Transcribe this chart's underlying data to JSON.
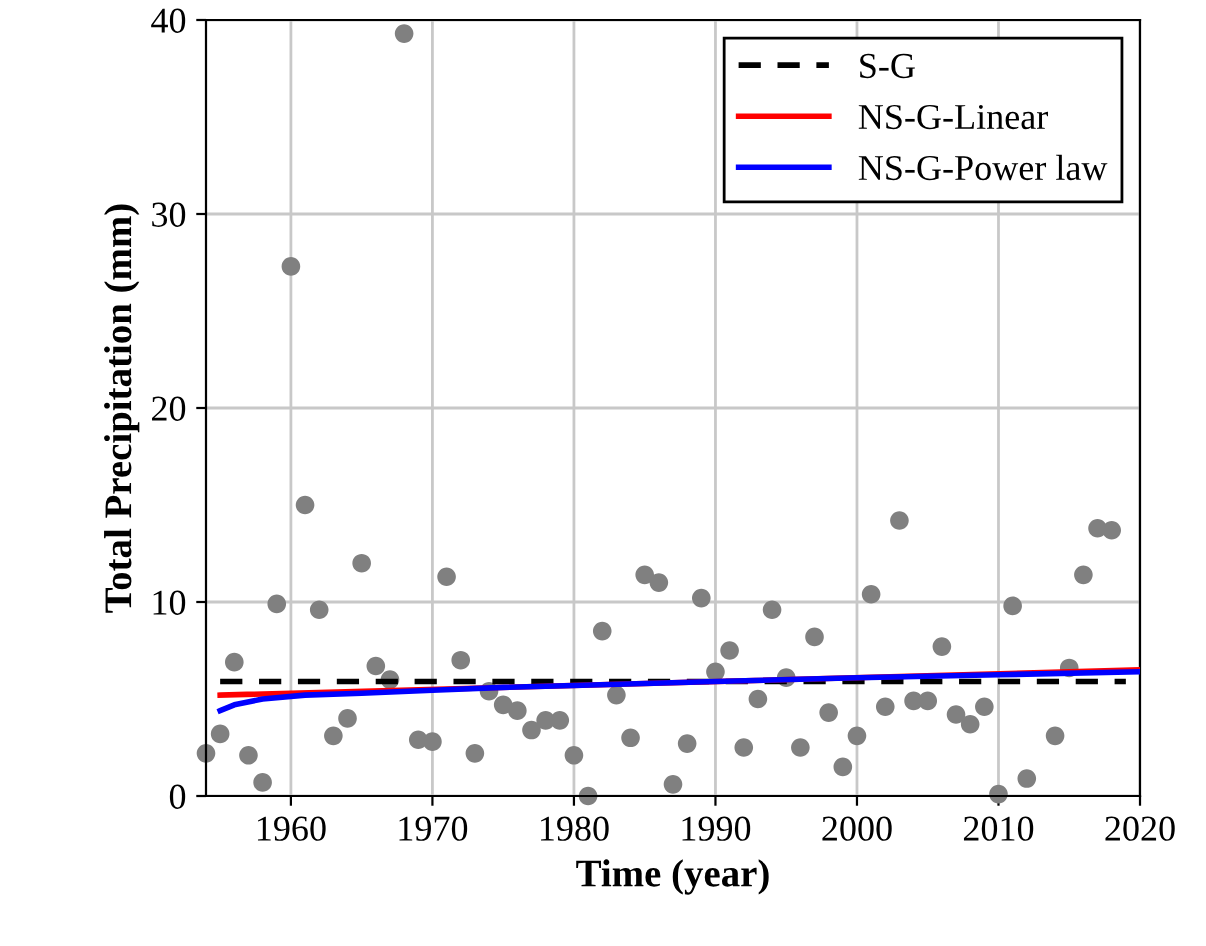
{
  "chart_data": {
    "type": "scatter",
    "xlabel": "Time (year)",
    "ylabel": "Total Precipitation (mm)",
    "xlim": [
      1954,
      2020
    ],
    "ylim": [
      0,
      40
    ],
    "xticks": [
      1960,
      1970,
      1980,
      1990,
      2000,
      2010,
      2020
    ],
    "yticks": [
      0,
      10,
      20,
      30,
      40
    ],
    "grid": true,
    "legend": "top right",
    "series": [
      {
        "color": "#808080",
        "marker": "circle",
        "x": [
          1954,
          1955,
          1956,
          1957,
          1958,
          1959,
          1960,
          1961,
          1962,
          1963,
          1964,
          1965,
          1966,
          1967,
          1968,
          1969,
          1970,
          1971,
          1972,
          1973,
          1974,
          1975,
          1976,
          1977,
          1978,
          1979,
          1980,
          1981,
          1982,
          1983,
          1984,
          1985,
          1986,
          1987,
          1988,
          1989,
          1990,
          1991,
          1992,
          1993,
          1994,
          1995,
          1996,
          1997,
          1998,
          1999,
          2000,
          2001,
          2002,
          2003,
          2004,
          2005,
          2006,
          2007,
          2008,
          2009,
          2010,
          2011,
          2012,
          2014,
          2015,
          2016,
          2017,
          2018
        ],
        "values": [
          2.2,
          3.2,
          6.9,
          2.1,
          0.7,
          9.9,
          27.3,
          15.0,
          9.6,
          3.1,
          4.0,
          12.0,
          6.7,
          6.0,
          39.3,
          2.9,
          2.8,
          11.3,
          7.0,
          2.2,
          5.4,
          4.7,
          4.4,
          3.4,
          3.9,
          3.9,
          2.1,
          0.0,
          8.5,
          5.2,
          3.0,
          11.4,
          11.0,
          0.6,
          2.7,
          10.2,
          6.4,
          7.5,
          2.5,
          5.0,
          9.6,
          6.1,
          2.5,
          8.2,
          4.3,
          1.5,
          3.1,
          10.4,
          4.6,
          14.2,
          4.9,
          4.9,
          7.7,
          4.2,
          3.7,
          4.6,
          0.1,
          9.8,
          0.9,
          3.1,
          6.6,
          11.4,
          13.8,
          13.7
        ]
      },
      {
        "type": "line",
        "name": "S-G",
        "color": "#000000",
        "line_style": "dashed",
        "x": [
          1955,
          2019
        ],
        "values": [
          5.9,
          5.9
        ]
      },
      {
        "type": "line",
        "name": "NS-G-Linear",
        "color": "#ff0000",
        "line_style": "solid",
        "x": [
          1955,
          2020
        ],
        "values": [
          5.2,
          6.5
        ]
      },
      {
        "type": "line",
        "name": "NS-G-Power law",
        "color": "#0000ff",
        "line_style": "solid",
        "x": [
          1955,
          1956,
          1958,
          1961,
          1965,
          1970,
          1975,
          1980,
          1990,
          2000,
          2010,
          2020
        ],
        "values": [
          4.4,
          4.7,
          5.0,
          5.2,
          5.3,
          5.45,
          5.6,
          5.7,
          5.9,
          6.1,
          6.25,
          6.4
        ]
      }
    ]
  }
}
